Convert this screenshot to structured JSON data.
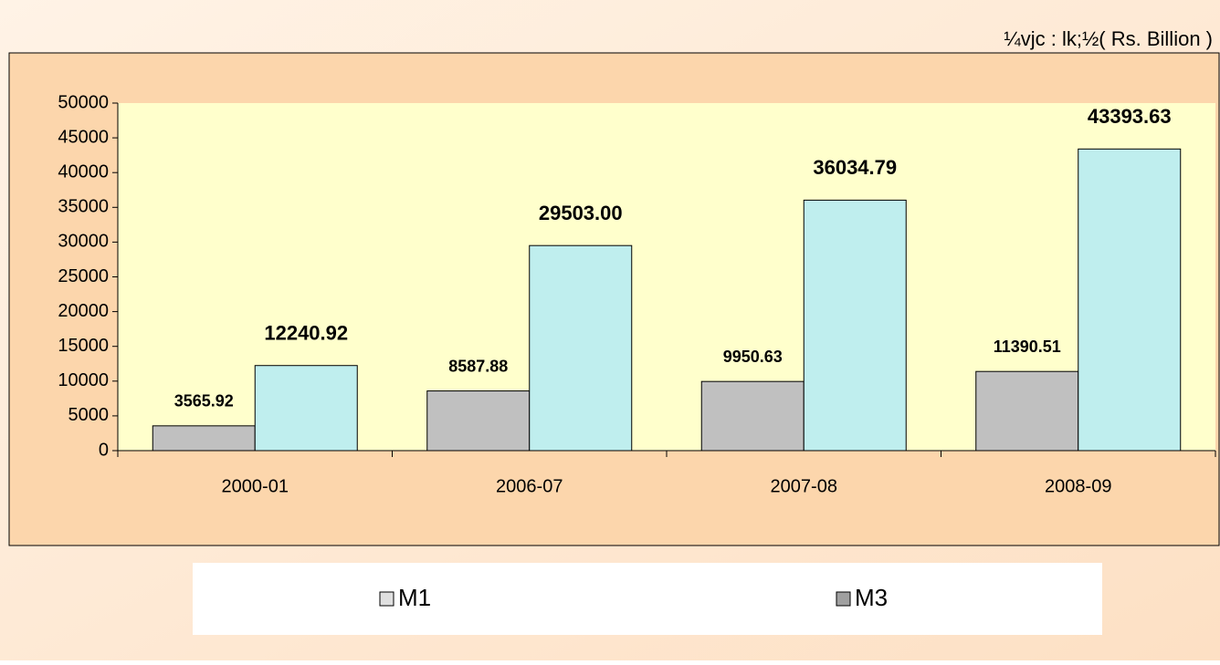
{
  "chart_data": {
    "type": "bar",
    "unit_label": "¼vjc : lk;½( Rs. Billion )",
    "categories": [
      "2000-01",
      "2006-07",
      "2007-08",
      "2008-09"
    ],
    "series": [
      {
        "name": "M1",
        "color": "#c0c0c0",
        "legend_color": "#e0e0e0",
        "values": [
          3565.92,
          8587.88,
          9950.63,
          11390.51
        ],
        "value_labels": [
          "3565.92",
          "8587.88",
          "9950.63",
          "11390.51"
        ]
      },
      {
        "name": "M3",
        "color": "#bfeeee",
        "legend_color": "#a0a0a0",
        "values": [
          12240.92,
          29503.0,
          36034.79,
          43393.63
        ],
        "value_labels": [
          "12240.92",
          "29503.00",
          "36034.79",
          "43393.63"
        ]
      }
    ],
    "ylim": [
      0,
      50000
    ],
    "yticks": [
      0,
      5000,
      10000,
      15000,
      20000,
      25000,
      30000,
      35000,
      40000,
      45000,
      50000
    ]
  }
}
